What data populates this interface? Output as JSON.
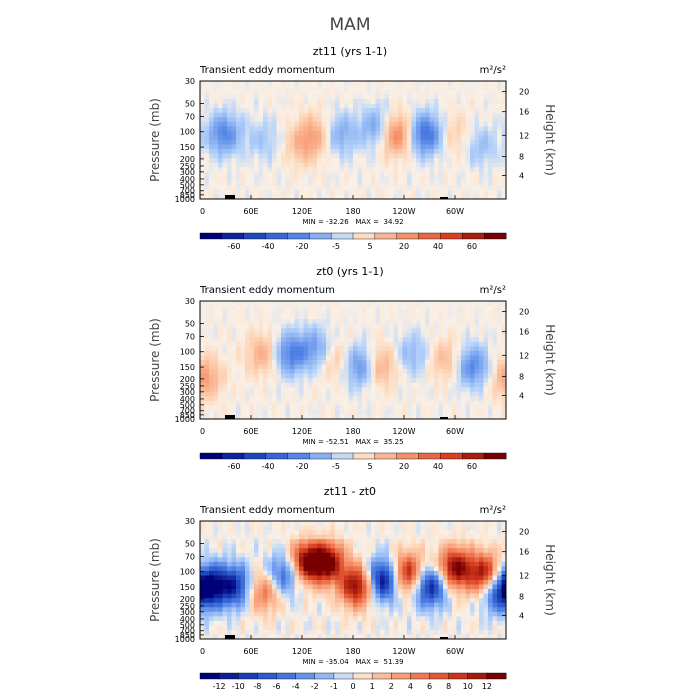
{
  "page_title": "MAM",
  "chart_data": [
    {
      "type": "heatmap",
      "title": "zt11 (yrs 1-1)",
      "subtitle": "Transient eddy momentum",
      "units": "m²/s²",
      "ylabel": "Pressure (mb)",
      "y2label": "Height (km)",
      "x_ticks": [
        "0",
        "60E",
        "120E",
        "180",
        "120W",
        "60W"
      ],
      "y_ticks": [
        "30",
        "50",
        "70",
        "100",
        "150",
        "200",
        "250",
        "300",
        "400",
        "500",
        "700",
        "850",
        "1000"
      ],
      "y2_ticks": [
        "20",
        "16",
        "12",
        "8",
        "4"
      ],
      "stats": "MIN = -32.26   MAX =  34.92",
      "colorbar_ticks": [
        "-60",
        "-40",
        "-20",
        "-5",
        "5",
        "20",
        "40",
        "60"
      ],
      "colorbar_levels": 14,
      "intensity": 0.55,
      "features": [
        {
          "lon": 28,
          "lev": 0.45,
          "v": -0.7
        },
        {
          "lon": 75,
          "lev": 0.5,
          "v": -0.25
        },
        {
          "lon": 120,
          "lev": 0.55,
          "v": 0.35
        },
        {
          "lon": 135,
          "lev": 0.45,
          "v": 0.45
        },
        {
          "lon": 165,
          "lev": 0.45,
          "v": -0.45
        },
        {
          "lon": 210,
          "lev": 0.4,
          "v": -0.6
        },
        {
          "lon": 230,
          "lev": 0.45,
          "v": 0.9
        },
        {
          "lon": 265,
          "lev": 0.45,
          "v": -0.9
        },
        {
          "lon": 300,
          "lev": 0.45,
          "v": 0.25
        },
        {
          "lon": 330,
          "lev": 0.55,
          "v": -0.3
        }
      ]
    },
    {
      "type": "heatmap",
      "title": "zt0 (yrs 1-1)",
      "subtitle": "Transient eddy momentum",
      "units": "m²/s²",
      "ylabel": "Pressure (mb)",
      "y2label": "Height (km)",
      "x_ticks": [
        "0",
        "60E",
        "120E",
        "180",
        "120W",
        "60W"
      ],
      "y_ticks": [
        "30",
        "50",
        "70",
        "100",
        "150",
        "200",
        "250",
        "300",
        "400",
        "500",
        "700",
        "850",
        "1000"
      ],
      "y2_ticks": [
        "20",
        "16",
        "12",
        "8",
        "4"
      ],
      "stats": "MIN = -52.51   MAX =  35.25",
      "colorbar_ticks": [
        "-60",
        "-40",
        "-20",
        "-5",
        "5",
        "20",
        "40",
        "60"
      ],
      "colorbar_levels": 14,
      "intensity": 0.55,
      "features": [
        {
          "lon": 5,
          "lev": 0.65,
          "v": 0.6
        },
        {
          "lon": 75,
          "lev": 0.45,
          "v": 0.5
        },
        {
          "lon": 105,
          "lev": 0.45,
          "v": -0.75
        },
        {
          "lon": 135,
          "lev": 0.4,
          "v": -0.5
        },
        {
          "lon": 160,
          "lev": 0.5,
          "v": 0.3
        },
        {
          "lon": 190,
          "lev": 0.55,
          "v": -0.75
        },
        {
          "lon": 210,
          "lev": 0.55,
          "v": 0.6
        },
        {
          "lon": 250,
          "lev": 0.45,
          "v": -0.35
        },
        {
          "lon": 290,
          "lev": 0.5,
          "v": 0.4
        },
        {
          "lon": 320,
          "lev": 0.55,
          "v": -0.7
        }
      ]
    },
    {
      "type": "heatmap",
      "title": "zt11 - zt0",
      "subtitle": "Transient eddy momentum",
      "units": "m²/s²",
      "ylabel": "Pressure (mb)",
      "y2label": "Height (km)",
      "x_ticks": [
        "0",
        "60E",
        "120E",
        "180",
        "120W",
        "60W"
      ],
      "y_ticks": [
        "30",
        "50",
        "70",
        "100",
        "150",
        "200",
        "250",
        "300",
        "400",
        "500",
        "700",
        "850",
        "1000"
      ],
      "y2_ticks": [
        "20",
        "16",
        "12",
        "8",
        "4"
      ],
      "stats": "MIN = -35.04   MAX =  51.39",
      "colorbar_ticks": [
        "-12",
        "-10",
        "-8",
        "-6",
        "-4",
        "-2",
        "-1",
        "0",
        "1",
        "2",
        "4",
        "6",
        "8",
        "10",
        "12"
      ],
      "colorbar_levels": 16,
      "intensity": 1.0,
      "features": [
        {
          "lon": 10,
          "lev": 0.55,
          "v": -1.0
        },
        {
          "lon": 40,
          "lev": 0.55,
          "v": -0.8
        },
        {
          "lon": 75,
          "lev": 0.6,
          "v": 0.5
        },
        {
          "lon": 100,
          "lev": 0.45,
          "v": -0.6
        },
        {
          "lon": 125,
          "lev": 0.35,
          "v": 1.0
        },
        {
          "lon": 150,
          "lev": 0.35,
          "v": 1.0
        },
        {
          "lon": 185,
          "lev": 0.55,
          "v": 1.0
        },
        {
          "lon": 215,
          "lev": 0.5,
          "v": -1.0
        },
        {
          "lon": 245,
          "lev": 0.45,
          "v": 0.9
        },
        {
          "lon": 270,
          "lev": 0.55,
          "v": -0.9
        },
        {
          "lon": 300,
          "lev": 0.4,
          "v": 1.0
        },
        {
          "lon": 335,
          "lev": 0.45,
          "v": 0.9
        },
        {
          "lon": 350,
          "lev": 0.6,
          "v": -0.6
        }
      ]
    }
  ]
}
